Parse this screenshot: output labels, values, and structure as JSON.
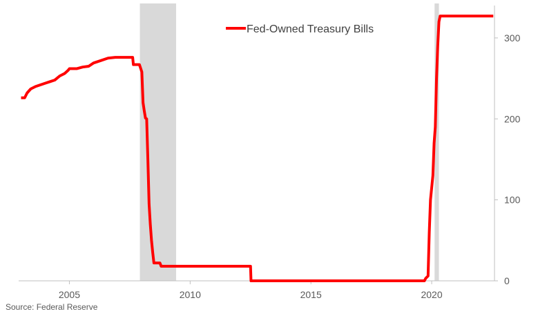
{
  "chart_data": {
    "type": "line",
    "title": "",
    "xlabel": "",
    "ylabel": "",
    "x_ticks": [
      "2005",
      "2010",
      "2015",
      "2020"
    ],
    "y_ticks": [
      "0",
      "100",
      "200",
      "300"
    ],
    "xlim": [
      2002.9,
      2022.6
    ],
    "ylim": [
      0,
      340
    ],
    "y_axis_side": "right",
    "grid": false,
    "legend": {
      "position": "top-center"
    },
    "recessions": [
      {
        "start": 2007.92,
        "end": 2009.42
      },
      {
        "start": 2020.12,
        "end": 2020.3
      }
    ],
    "series": [
      {
        "name": "Fed-Owned Treasury Bills",
        "color": "#ff0000",
        "points": [
          [
            2003.0,
            226
          ],
          [
            2003.15,
            226
          ],
          [
            2003.25,
            232
          ],
          [
            2003.4,
            237
          ],
          [
            2003.6,
            240
          ],
          [
            2003.8,
            242
          ],
          [
            2004.0,
            244
          ],
          [
            2004.2,
            246
          ],
          [
            2004.4,
            248
          ],
          [
            2004.6,
            253
          ],
          [
            2004.8,
            256
          ],
          [
            2004.95,
            260
          ],
          [
            2005.0,
            262
          ],
          [
            2005.3,
            262
          ],
          [
            2005.55,
            264
          ],
          [
            2005.8,
            265
          ],
          [
            2006.0,
            269
          ],
          [
            2006.3,
            272
          ],
          [
            2006.6,
            275
          ],
          [
            2006.9,
            276
          ],
          [
            2007.2,
            276
          ],
          [
            2007.5,
            276
          ],
          [
            2007.62,
            276
          ],
          [
            2007.65,
            267
          ],
          [
            2007.9,
            267
          ],
          [
            2008.0,
            258
          ],
          [
            2008.05,
            220
          ],
          [
            2008.1,
            210
          ],
          [
            2008.15,
            201
          ],
          [
            2008.2,
            200
          ],
          [
            2008.25,
            150
          ],
          [
            2008.3,
            95
          ],
          [
            2008.35,
            70
          ],
          [
            2008.4,
            50
          ],
          [
            2008.45,
            35
          ],
          [
            2008.5,
            22
          ],
          [
            2008.75,
            22
          ],
          [
            2008.8,
            18
          ],
          [
            2009.5,
            18
          ],
          [
            2010.0,
            18
          ],
          [
            2011.0,
            18
          ],
          [
            2012.0,
            18
          ],
          [
            2012.5,
            18
          ],
          [
            2012.52,
            0
          ],
          [
            2015.0,
            0
          ],
          [
            2017.0,
            0
          ],
          [
            2019.7,
            0
          ],
          [
            2019.75,
            3
          ],
          [
            2019.85,
            6
          ],
          [
            2019.9,
            60
          ],
          [
            2019.95,
            100
          ],
          [
            2020.05,
            130
          ],
          [
            2020.1,
            170
          ],
          [
            2020.15,
            190
          ],
          [
            2020.2,
            250
          ],
          [
            2020.25,
            290
          ],
          [
            2020.3,
            320
          ],
          [
            2020.35,
            327
          ],
          [
            2021.0,
            327
          ],
          [
            2022.0,
            327
          ],
          [
            2022.55,
            327
          ]
        ]
      }
    ]
  },
  "source": "Source: Federal Reserve"
}
